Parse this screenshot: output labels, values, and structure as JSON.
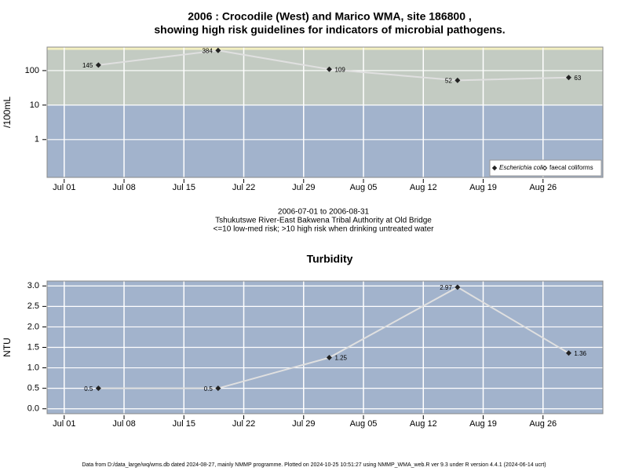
{
  "chart_data": [
    {
      "type": "line",
      "title": [
        "2006 : Crocodile (West) and Marico WMA, site 186800 ,",
        "showing high risk guidelines for indicators of microbial pathogens."
      ],
      "subtitle": [
        "2006-07-01 to 2006-08-31",
        "Tshukutswe River-East Bakwena Tribal Authority at Old Bridge",
        "<=10 low-med risk; >10 high risk when drinking untreated water"
      ],
      "y_label": "/100mL",
      "log_scale": true,
      "x": [
        "2006-07-05",
        "2006-07-19",
        "2006-08-01",
        "2006-08-16",
        "2006-08-29"
      ],
      "series": [
        {
          "name": "Escherichia coli",
          "color": "#222222",
          "values": [
            145,
            384,
            109,
            52,
            63
          ]
        },
        {
          "name": "faecal coliforms",
          "color": "#222222",
          "values": [
            null,
            null,
            null,
            null,
            null
          ]
        }
      ],
      "line_color": "#e0e0e0",
      "bands": [
        {
          "to": 10,
          "color": "#a2b3cc"
        },
        {
          "from": 10,
          "to": 400,
          "color": "#c3cbc2"
        },
        {
          "from": 400,
          "color": "#f4f0c0"
        }
      ],
      "xlim": [
        "2006-06-29",
        "2006-09-02"
      ],
      "xticks": [
        {
          "value": "2006-07-01",
          "label": "Jul 01"
        },
        {
          "value": "2006-07-08",
          "label": "Jul 08"
        },
        {
          "value": "2006-07-15",
          "label": "Jul 15"
        },
        {
          "value": "2006-07-22",
          "label": "Jul 22"
        },
        {
          "value": "2006-07-29",
          "label": "Jul 29"
        },
        {
          "value": "2006-08-05",
          "label": "Aug 05"
        },
        {
          "value": "2006-08-12",
          "label": "Aug 12"
        },
        {
          "value": "2006-08-19",
          "label": "Aug 19"
        },
        {
          "value": "2006-08-26",
          "label": "Aug 26"
        }
      ],
      "ylim": [
        0.08,
        480
      ],
      "yticks": [
        1,
        10,
        100
      ],
      "grid": true,
      "legend_position": "bottom-right"
    },
    {
      "type": "line",
      "title": [
        "Turbidity"
      ],
      "y_label": "NTU",
      "log_scale": false,
      "x": [
        "2006-07-05",
        "2006-07-19",
        "2006-08-01",
        "2006-08-16",
        "2006-08-29"
      ],
      "series": [
        {
          "name": "Turbidity",
          "color": "#222222",
          "values": [
            0.5,
            0.5,
            1.25,
            2.97,
            1.36
          ]
        }
      ],
      "line_color": "#e0e0e0",
      "bands": [
        {
          "color": "#a2b3cc"
        }
      ],
      "xlim": [
        "2006-06-29",
        "2006-09-02"
      ],
      "xticks": [
        {
          "value": "2006-07-01",
          "label": "Jul 01"
        },
        {
          "value": "2006-07-08",
          "label": "Jul 08"
        },
        {
          "value": "2006-07-15",
          "label": "Jul 15"
        },
        {
          "value": "2006-07-22",
          "label": "Jul 22"
        },
        {
          "value": "2006-07-29",
          "label": "Jul 29"
        },
        {
          "value": "2006-08-05",
          "label": "Aug 05"
        },
        {
          "value": "2006-08-12",
          "label": "Aug 12"
        },
        {
          "value": "2006-08-19",
          "label": "Aug 19"
        },
        {
          "value": "2006-08-26",
          "label": "Aug 26"
        }
      ],
      "ylim": [
        -0.12,
        3.12
      ],
      "yticks": [
        {
          "value": 0,
          "label": "0.0"
        },
        0.5,
        {
          "value": 1,
          "label": "1.0"
        },
        1.5,
        {
          "value": 2,
          "label": "2.0"
        },
        2.5,
        {
          "value": 3,
          "label": "3.0"
        }
      ],
      "grid": true
    }
  ],
  "footer": "Data from D:/data_large/wq/wms.db dated 2024-08-27, mainly NMMP programme. Plotted on 2024-10-25 10:51:27 using NMMP_WMA_web.R ver 9.3 under R version 4.4.1 (2024-06-14 ucrt)"
}
